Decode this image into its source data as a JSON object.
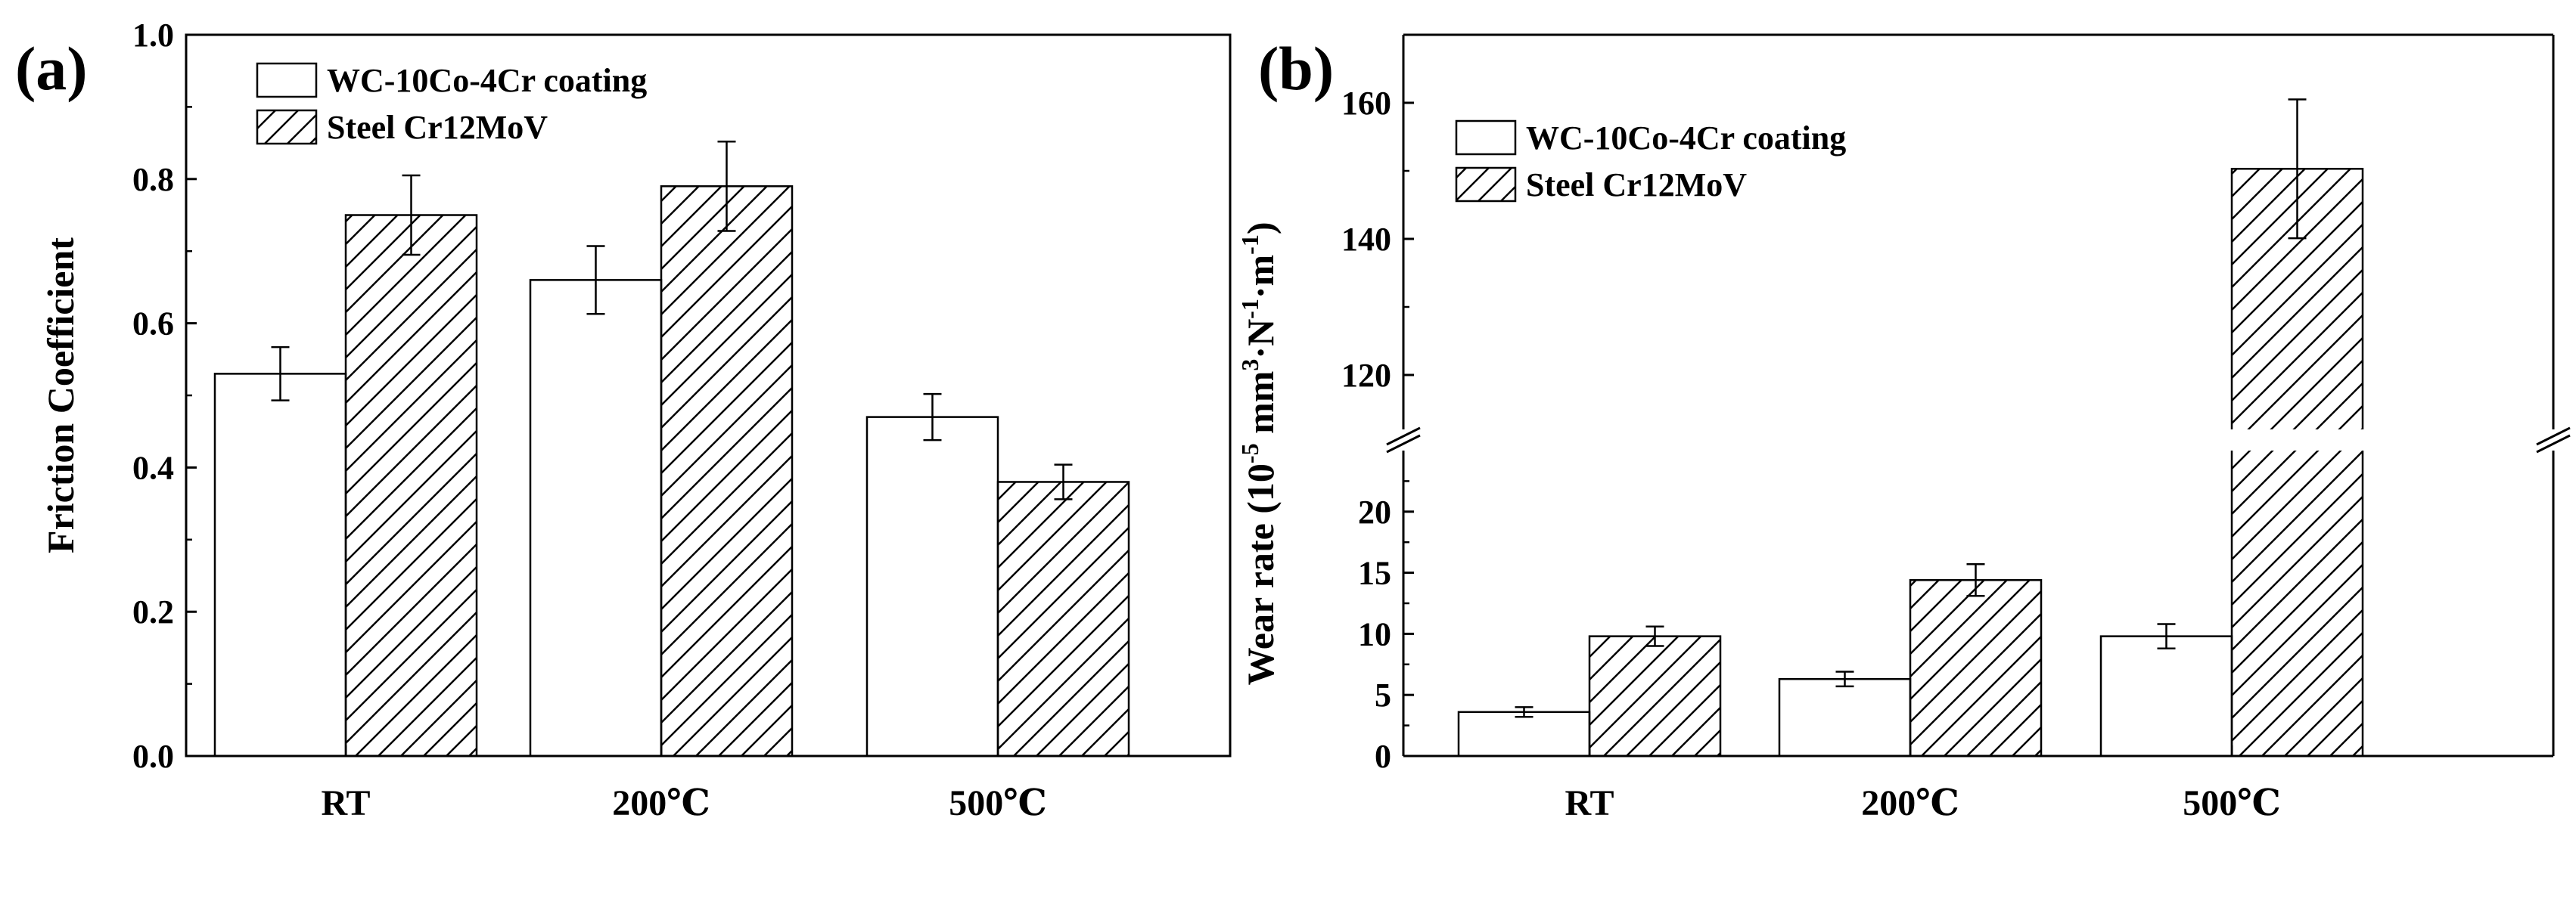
{
  "colors": {
    "axis": "#000000",
    "bar_fill": "#ffffff",
    "hatch": "#000000",
    "background": "#ffffff"
  },
  "chart_data": [
    {
      "type": "bar",
      "panel_label": "(a)",
      "title": "",
      "xlabel": "",
      "ylabel": "Friction Coefficient",
      "categories": [
        "RT",
        "200℃",
        "500℃"
      ],
      "ylim": [
        0.0,
        1.0
      ],
      "yticks": [
        0.0,
        0.2,
        0.4,
        0.6,
        0.8,
        1.0
      ],
      "ytick_labels": [
        "0.0",
        "0.2",
        "0.4",
        "0.6",
        "0.8",
        "1.0"
      ],
      "legend_position": "top-left",
      "series": [
        {
          "name": "WC-10Co-4Cr coating",
          "pattern": "plain",
          "values": [
            0.53,
            0.66,
            0.47
          ],
          "errors": [
            0.037,
            0.047,
            0.032
          ]
        },
        {
          "name": "Steel Cr12MoV",
          "pattern": "hatched",
          "values": [
            0.75,
            0.79,
            0.38
          ],
          "errors": [
            0.055,
            0.062,
            0.024
          ]
        }
      ]
    },
    {
      "type": "bar",
      "panel_label": "(b)",
      "title": "",
      "xlabel": "",
      "ylabel_main": "Wear rate (10",
      "ylabel_exp1": "-5",
      "ylabel_mid1": " mm",
      "ylabel_exp2": "3",
      "ylabel_mid2": "·N",
      "ylabel_exp3": "-1",
      "ylabel_mid3": "·m",
      "ylabel_exp4": "-1",
      "ylabel_end": ")",
      "categories": [
        "RT",
        "200℃",
        "500℃"
      ],
      "axis_break": {
        "lower_range": [
          0,
          25
        ],
        "upper_range": [
          112,
          170
        ]
      },
      "yticks_lower": [
        0,
        5,
        10,
        15,
        20
      ],
      "ytick_labels_lower": [
        "0",
        "5",
        "10",
        "15",
        "20"
      ],
      "yticks_upper": [
        120,
        140,
        160
      ],
      "ytick_labels_upper": [
        "120",
        "140",
        "160"
      ],
      "legend_position": "top-left",
      "series": [
        {
          "name": "WC-10Co-4Cr coating",
          "pattern": "plain",
          "values": [
            3.6,
            6.3,
            9.8
          ],
          "errors": [
            0.4,
            0.6,
            1.0
          ]
        },
        {
          "name": "Steel Cr12MoV",
          "pattern": "hatched",
          "values": [
            9.8,
            14.4,
            150.3
          ],
          "errors": [
            0.8,
            1.3,
            10.2
          ]
        }
      ]
    }
  ]
}
